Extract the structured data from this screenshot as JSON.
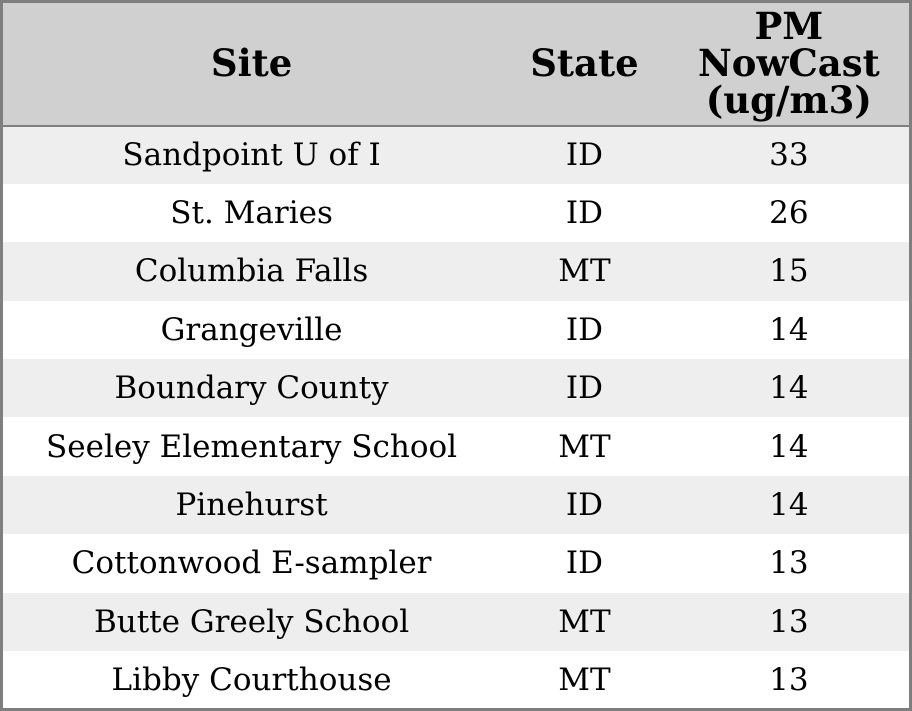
{
  "colors": {
    "border": "#7f7f7f",
    "header_bg": "#d0d0d0",
    "row_alt_bg": "#eeeeee",
    "row_bg": "#ffffff",
    "text": "#000000"
  },
  "table": {
    "header": {
      "site": "Site",
      "state": "State",
      "pm": "PM\nNowCast\n(ug/m3)"
    }
  },
  "chart_data": {
    "type": "table",
    "title": "",
    "columns": [
      "Site",
      "State",
      "PM NowCast (ug/m3)"
    ],
    "rows": [
      [
        "Sandpoint U of I",
        "ID",
        33
      ],
      [
        "St. Maries",
        "ID",
        26
      ],
      [
        "Columbia Falls",
        "MT",
        15
      ],
      [
        "Grangeville",
        "ID",
        14
      ],
      [
        "Boundary County",
        "ID",
        14
      ],
      [
        "Seeley Elementary School",
        "MT",
        14
      ],
      [
        "Pinehurst",
        "ID",
        14
      ],
      [
        "Cottonwood E-sampler",
        "ID",
        13
      ],
      [
        "Butte Greely School",
        "MT",
        13
      ],
      [
        "Libby Courthouse",
        "MT",
        13
      ]
    ],
    "layout": {
      "zebra_striping": true,
      "first_data_row_shaded": true,
      "alignment": "center"
    }
  }
}
